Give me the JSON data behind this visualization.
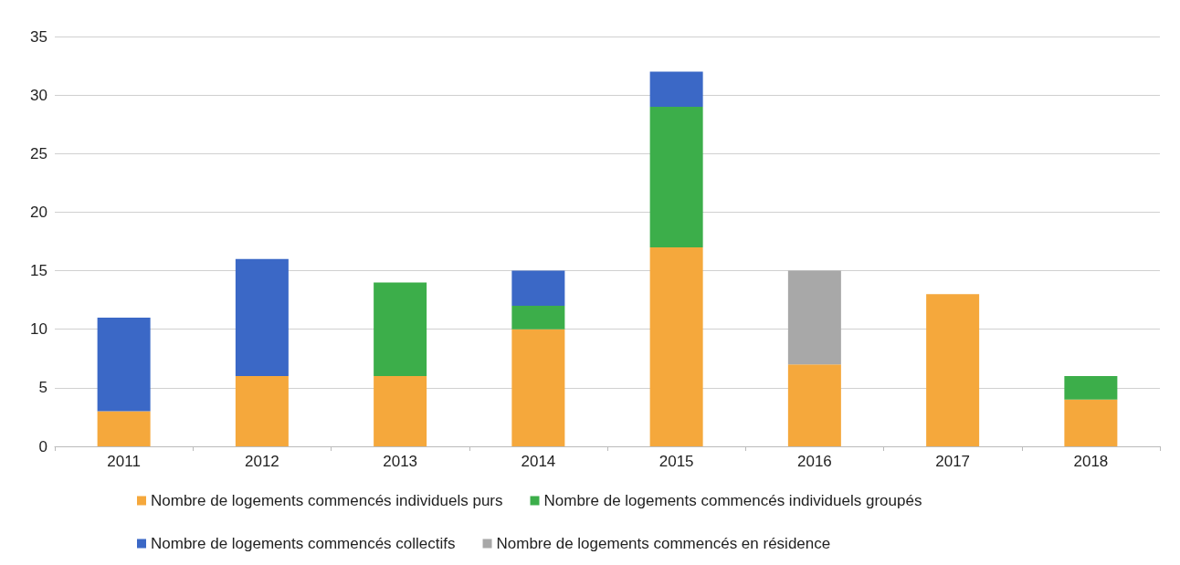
{
  "chart_data": {
    "type": "bar",
    "stacked": true,
    "categories": [
      "2011",
      "2012",
      "2013",
      "2014",
      "2015",
      "2016",
      "2017",
      "2018"
    ],
    "series": [
      {
        "name": "Nombre de logements commencés individuels purs",
        "color": "#f5a83c",
        "values": [
          3,
          6,
          6,
          10,
          17,
          7,
          13,
          4
        ]
      },
      {
        "name": "Nombre de logements commencés individuels groupés",
        "color": "#3cae4a",
        "values": [
          null,
          null,
          8,
          2,
          12,
          null,
          null,
          2
        ]
      },
      {
        "name": "Nombre de logements commencés collectifs",
        "color": "#3b68c6",
        "values": [
          8,
          10,
          null,
          3,
          3,
          null,
          null,
          null
        ]
      },
      {
        "name": "Nombre de logements commencés en résidence",
        "color": "#a8a8a8",
        "values": [
          null,
          null,
          null,
          null,
          null,
          8,
          null,
          null
        ]
      }
    ],
    "ylim": [
      0,
      35
    ],
    "yticks": [
      0,
      5,
      10,
      15,
      20,
      25,
      30,
      35
    ],
    "grid": "y",
    "legend": "bottom"
  }
}
